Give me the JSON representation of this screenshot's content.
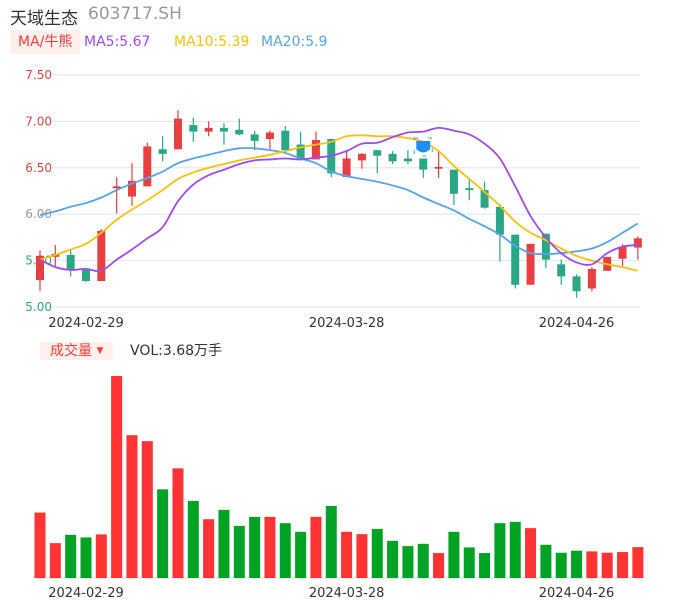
{
  "header": {
    "name": "天域生态",
    "code": "603717.SH"
  },
  "legend": {
    "ma_button": "MA/牛熊",
    "ma5": "MA5:5.67",
    "ma10": "MA10:5.39",
    "ma20": "MA20:5.9"
  },
  "volume_header": {
    "button": "成交量",
    "vol": "VOL:3.68万手"
  },
  "colors": {
    "up": "#e84040",
    "down": "#2aa784",
    "vol_up": "#ff3333",
    "vol_down": "#00a324",
    "ma5": "#a24af2",
    "ma10": "#fcc10a",
    "ma20": "#55a5f0"
  },
  "marker_icon": "shield-badge-icon",
  "chart_data": [
    {
      "type": "candlestick",
      "ylim": [
        5.0,
        7.5
      ],
      "yticks": [
        "7.50",
        "7.00",
        "6.50",
        "6.00",
        "5.50",
        "5.00"
      ],
      "grid": true,
      "xticks": [
        {
          "index": 3,
          "label": "2024-02-29"
        },
        {
          "index": 20,
          "label": "2024-03-28"
        },
        {
          "index": 35,
          "label": "2024-04-26"
        }
      ],
      "ohlc": [
        [
          5.29,
          5.61,
          5.17,
          5.55
        ],
        [
          5.54,
          5.67,
          5.44,
          5.57
        ],
        [
          5.56,
          5.62,
          5.33,
          5.41
        ],
        [
          5.41,
          5.41,
          5.27,
          5.28
        ],
        [
          5.28,
          5.84,
          5.28,
          5.82
        ],
        [
          6.28,
          6.4,
          6.01,
          6.3
        ],
        [
          6.19,
          6.55,
          6.09,
          6.36
        ],
        [
          6.3,
          6.77,
          6.3,
          6.73
        ],
        [
          6.7,
          6.84,
          6.57,
          6.65
        ],
        [
          6.7,
          7.12,
          6.7,
          7.03
        ],
        [
          6.96,
          7.04,
          6.78,
          6.89
        ],
        [
          6.89,
          7.0,
          6.84,
          6.93
        ],
        [
          6.93,
          6.98,
          6.75,
          6.89
        ],
        [
          6.91,
          7.03,
          6.85,
          6.86
        ],
        [
          6.86,
          6.9,
          6.69,
          6.79
        ],
        [
          6.81,
          6.9,
          6.7,
          6.88
        ],
        [
          6.9,
          6.95,
          6.69,
          6.69
        ],
        [
          6.75,
          6.89,
          6.6,
          6.6
        ],
        [
          6.59,
          6.89,
          6.59,
          6.8
        ],
        [
          6.81,
          6.81,
          6.4,
          6.44
        ],
        [
          6.4,
          6.69,
          6.4,
          6.6
        ],
        [
          6.58,
          6.66,
          6.49,
          6.65
        ],
        [
          6.69,
          6.69,
          6.44,
          6.63
        ],
        [
          6.65,
          6.68,
          6.54,
          6.57
        ],
        [
          6.6,
          6.69,
          6.54,
          6.57
        ],
        [
          6.6,
          6.6,
          6.39,
          6.48
        ],
        [
          6.49,
          6.69,
          6.39,
          6.51
        ],
        [
          6.48,
          6.48,
          6.1,
          6.22
        ],
        [
          6.28,
          6.37,
          6.15,
          6.26
        ],
        [
          6.26,
          6.35,
          6.06,
          6.07
        ],
        [
          6.08,
          6.11,
          5.49,
          5.78
        ],
        [
          5.78,
          5.78,
          5.2,
          5.24
        ],
        [
          5.24,
          5.68,
          5.24,
          5.68
        ],
        [
          5.79,
          5.79,
          5.42,
          5.51
        ],
        [
          5.46,
          5.51,
          5.24,
          5.33
        ],
        [
          5.33,
          5.35,
          5.1,
          5.17
        ],
        [
          5.2,
          5.43,
          5.17,
          5.41
        ],
        [
          5.39,
          5.54,
          5.39,
          5.54
        ],
        [
          5.52,
          5.68,
          5.44,
          5.65
        ],
        [
          5.64,
          5.76,
          5.51,
          5.74
        ]
      ],
      "ma5": [
        5.51,
        5.43,
        5.4,
        5.41,
        5.39,
        5.51,
        5.62,
        5.74,
        5.86,
        6.14,
        6.32,
        6.42,
        6.48,
        6.54,
        6.58,
        6.59,
        6.6,
        6.59,
        6.61,
        6.63,
        6.68,
        6.76,
        6.77,
        6.83,
        6.88,
        6.89,
        6.93,
        6.9,
        6.86,
        6.76,
        6.6,
        6.3,
        5.98,
        5.75,
        5.58,
        5.48,
        5.46,
        5.58,
        5.65,
        5.67
      ],
      "ma10": [
        5.51,
        5.56,
        5.62,
        5.68,
        5.8,
        5.94,
        6.05,
        6.15,
        6.26,
        6.38,
        6.45,
        6.5,
        6.54,
        6.58,
        6.61,
        6.64,
        6.68,
        6.72,
        6.75,
        6.78,
        6.84,
        6.85,
        6.84,
        6.84,
        6.82,
        6.78,
        6.68,
        6.52,
        6.38,
        6.24,
        6.09,
        5.92,
        5.8,
        5.72,
        5.63,
        5.55,
        5.5,
        5.46,
        5.43,
        5.39
      ],
      "ma20": [
        5.99,
        6.03,
        6.08,
        6.12,
        6.18,
        6.26,
        6.33,
        6.39,
        6.46,
        6.55,
        6.6,
        6.64,
        6.68,
        6.71,
        6.71,
        6.69,
        6.66,
        6.6,
        6.55,
        6.46,
        6.41,
        6.38,
        6.35,
        6.31,
        6.26,
        6.18,
        6.11,
        6.04,
        5.95,
        5.87,
        5.78,
        5.66,
        5.58,
        5.57,
        5.58,
        5.6,
        5.63,
        5.7,
        5.8,
        5.9
      ],
      "marker_index": 25
    },
    {
      "type": "bar",
      "unit": "万手",
      "values": [
        7.8,
        4.15,
        5.14,
        4.83,
        5.19,
        24.06,
        17.01,
        16.3,
        10.56,
        13.06,
        9.18,
        7.0,
        8.11,
        6.21,
        7.28,
        7.28,
        6.53,
        5.5,
        7.28,
        8.58,
        5.5,
        5.22,
        5.85,
        4.43,
        3.8,
        4.07,
        2.97,
        5.5,
        3.64,
        2.97,
        6.53,
        6.69,
        5.94,
        3.96,
        3.01,
        3.25,
        3.17,
        3.01,
        3.09,
        3.68
      ],
      "xticks": [
        {
          "index": 3,
          "label": "2024-02-29"
        },
        {
          "index": 20,
          "label": "2024-03-28"
        },
        {
          "index": 35,
          "label": "2024-04-26"
        }
      ]
    }
  ]
}
